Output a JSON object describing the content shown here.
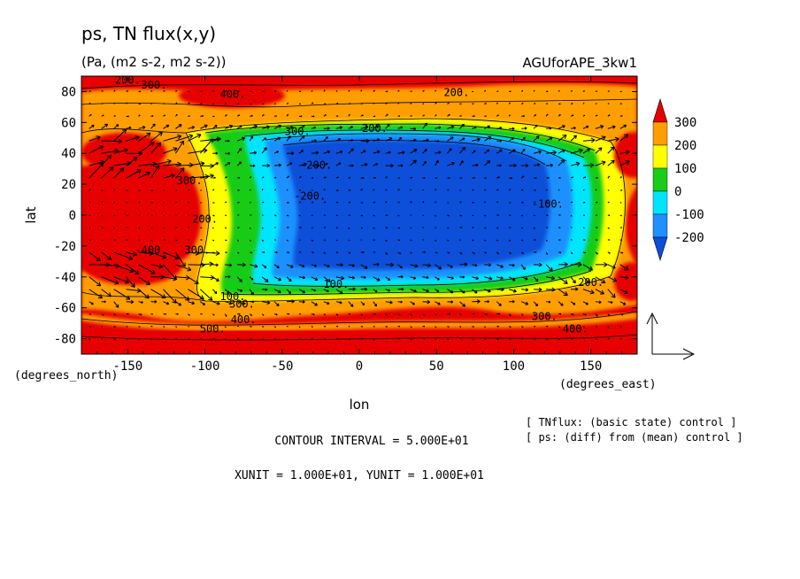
{
  "title": "ps, TN flux(x,y)",
  "subtitle": "(Pa, (m2 s-2, m2 s-2))",
  "run_label": "AGUforAPE_3kw1",
  "x_unit_label": "(degrees_east)",
  "y_unit_label": "(degrees_north)",
  "footer": {
    "legend_line1": "[ TNflux: (basic state) control ]",
    "legend_line2": "[ ps: (diff) from (mean) control ]",
    "contour_interval": "CONTOUR INTERVAL = 5.000E+01",
    "units": "XUNIT = 1.000E+01, YUNIT = 1.000E+01"
  },
  "chart_data": {
    "type": "heatmap",
    "title": "ps, TN flux(x,y)",
    "subtitle": "(Pa, (m2 s-2, m2 s-2))",
    "xlabel": "lon",
    "ylabel": "lat",
    "xlim": [
      -180,
      180
    ],
    "ylim": [
      -90,
      90
    ],
    "x_ticks": [
      -150,
      -100,
      -50,
      0,
      50,
      100,
      150
    ],
    "y_ticks": [
      -80,
      -60,
      -40,
      -20,
      0,
      20,
      40,
      60,
      80
    ],
    "x_tick_labels": [
      "-150",
      "-100",
      "-50",
      "0",
      "50",
      "100",
      "150"
    ],
    "y_tick_labels": [
      "-80",
      "-60",
      "-40",
      "-20",
      "0",
      "20",
      "40",
      "60",
      "80"
    ],
    "contour_interval": 50,
    "colorbar": {
      "levels": [
        -200,
        -100,
        0,
        100,
        200,
        300
      ],
      "labels": [
        "300",
        "200",
        "100",
        "0",
        "-100",
        "-200"
      ],
      "colors": [
        "#0a4fd8",
        "#1e90ff",
        "#00e5ff",
        "#18cc18",
        "#ffff00",
        "#ff9e00",
        "#e60000"
      ]
    },
    "contour_labels": [
      {
        "text": "200.",
        "lon": -150,
        "lat": 85
      },
      {
        "text": "300.",
        "lon": -133,
        "lat": 82
      },
      {
        "text": "400.",
        "lon": -82,
        "lat": 76
      },
      {
        "text": "200.",
        "lon": 63,
        "lat": 77
      },
      {
        "text": "200.",
        "lon": 10,
        "lat": 54
      },
      {
        "text": "300.",
        "lon": -40,
        "lat": 52
      },
      {
        "text": "-200.",
        "lon": -28,
        "lat": 30
      },
      {
        "text": "-200.",
        "lon": -32,
        "lat": 10
      },
      {
        "text": "300.",
        "lon": -110,
        "lat": 20
      },
      {
        "text": "200.",
        "lon": -100,
        "lat": -5
      },
      {
        "text": "300.",
        "lon": -105,
        "lat": -25
      },
      {
        "text": "-400.",
        "lon": -135,
        "lat": -25
      },
      {
        "text": "-100.",
        "lon": 122,
        "lat": 5
      },
      {
        "text": "100.",
        "lon": -15,
        "lat": -47
      },
      {
        "text": "200.",
        "lon": 150,
        "lat": -46
      },
      {
        "text": "100.",
        "lon": -82,
        "lat": -55
      },
      {
        "text": "300.",
        "lon": -76,
        "lat": -60
      },
      {
        "text": "400.",
        "lon": -75,
        "lat": -70
      },
      {
        "text": "500.",
        "lon": -95,
        "lat": -76
      },
      {
        "text": "300.",
        "lon": 120,
        "lat": -68
      },
      {
        "text": "400.",
        "lon": 140,
        "lat": -76
      }
    ],
    "reference_vector": {
      "xunit": 10,
      "yunit": 10
    }
  }
}
